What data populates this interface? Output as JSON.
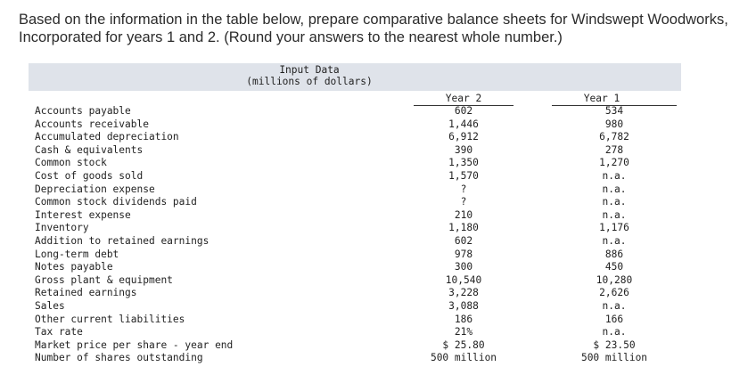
{
  "question": "Based on the information in the table below, prepare comparative balance sheets for Windswept Woodworks, Incorporated for years 1 and 2. (Round your answers to the nearest whole number.)",
  "table": {
    "title_line1": "Input Data",
    "title_line2": "(millions of dollars)",
    "col_year2": "Year 2",
    "col_year1": "Year 1",
    "rows": [
      {
        "label": "Accounts payable",
        "y2": "602",
        "y1": "534"
      },
      {
        "label": "Accounts receivable",
        "y2": "1,446",
        "y1": "980"
      },
      {
        "label": "Accumulated depreciation",
        "y2": "6,912",
        "y1": "6,782"
      },
      {
        "label": "Cash & equivalents",
        "y2": "390",
        "y1": "278"
      },
      {
        "label": "Common stock",
        "y2": "1,350",
        "y1": "1,270"
      },
      {
        "label": "Cost of goods sold",
        "y2": "1,570",
        "y1": "n.a."
      },
      {
        "label": "Depreciation expense",
        "y2": "?",
        "y1": "n.a."
      },
      {
        "label": "Common stock dividends paid",
        "y2": "?",
        "y1": "n.a."
      },
      {
        "label": "Interest expense",
        "y2": "210",
        "y1": "n.a."
      },
      {
        "label": "Inventory",
        "y2": "1,180",
        "y1": "1,176"
      },
      {
        "label": "Addition to retained earnings",
        "y2": "602",
        "y1": "n.a."
      },
      {
        "label": "Long-term debt",
        "y2": "978",
        "y1": "886"
      },
      {
        "label": "Notes payable",
        "y2": "300",
        "y1": "450"
      },
      {
        "label": "Gross plant & equipment",
        "y2": "10,540",
        "y1": "10,280"
      },
      {
        "label": "Retained earnings",
        "y2": "3,228",
        "y1": "2,626"
      },
      {
        "label": "Sales",
        "y2": "3,088",
        "y1": "n.a."
      },
      {
        "label": "Other current liabilities",
        "y2": "186",
        "y1": "166"
      },
      {
        "label": "Tax rate",
        "y2": "21%",
        "y1": "n.a."
      },
      {
        "label": "Market price per share - year end",
        "y2": "$ 25.80",
        "y1": "$ 23.50"
      },
      {
        "label": "Number of shares outstanding",
        "y2": "500 million",
        "y1": "500 million"
      }
    ]
  }
}
